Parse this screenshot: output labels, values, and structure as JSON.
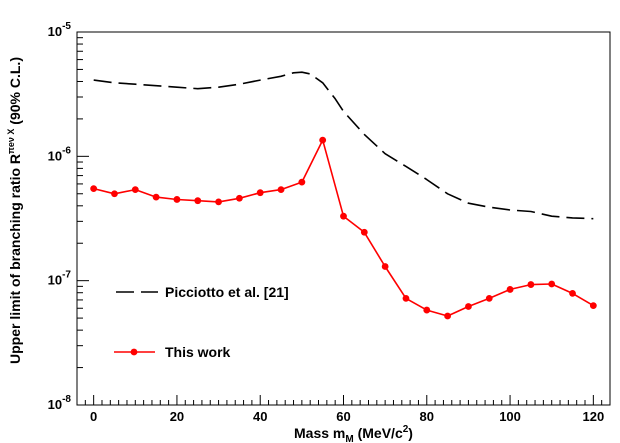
{
  "chart_data": {
    "type": "line",
    "title": "",
    "xlabel": "Mass m_M (MeV/c^2)",
    "xlabel_parts": {
      "main": "Mass m",
      "sub": "M",
      "mid": " (MeV/c",
      "sup": "2",
      "end": ")"
    },
    "ylabel": "Upper limit of branching ratio R^{πeνX} (90% C.L.)",
    "ylabel_parts": {
      "main": "Upper limit of branching ratio R",
      "sup": "πeν X",
      "end": " (90% C.L.)"
    },
    "xlim": [
      -4,
      124
    ],
    "ylim": [
      1e-08,
      1e-05
    ],
    "yscale": "log",
    "x_ticks": [
      "0",
      "20",
      "40",
      "60",
      "80",
      "100",
      "120"
    ],
    "y_ticks": [
      {
        "value": 1e-08,
        "base": "10",
        "exp": "-8"
      },
      {
        "value": 1e-07,
        "base": "10",
        "exp": "-7"
      },
      {
        "value": 1e-06,
        "base": "10",
        "exp": "-6"
      },
      {
        "value": 1e-05,
        "base": "10",
        "exp": "-5"
      }
    ],
    "legend_position": "lower-left",
    "series": [
      {
        "name": "Picciotto et al. [21]",
        "style": "dashed",
        "color": "#000000",
        "x": [
          0,
          5,
          10,
          15,
          20,
          25,
          30,
          35,
          40,
          45,
          48,
          50,
          52,
          55,
          58,
          60,
          65,
          70,
          75,
          80,
          85,
          90,
          95,
          100,
          105,
          110,
          115,
          120
        ],
        "y": [
          4.1e-06,
          3.9e-06,
          3.8e-06,
          3.7e-06,
          3.6e-06,
          3.5e-06,
          3.6e-06,
          3.8e-06,
          4.1e-06,
          4.4e-06,
          4.7e-06,
          4.75e-06,
          4.6e-06,
          3.9e-06,
          2.9e-06,
          2.3e-06,
          1.5e-06,
          1.05e-06,
          8.3e-07,
          6.5e-07,
          5e-07,
          4.2e-07,
          3.9e-07,
          3.7e-07,
          3.6e-07,
          3.3e-07,
          3.2e-07,
          3.15e-07
        ]
      },
      {
        "name": "This work",
        "style": "solid-markers",
        "color": "#ff0000",
        "x": [
          0,
          5,
          10,
          15,
          20,
          25,
          30,
          35,
          40,
          45,
          50,
          55,
          60,
          65,
          70,
          75,
          80,
          85,
          90,
          95,
          100,
          105,
          110,
          115,
          120
        ],
        "y": [
          5.5e-07,
          5e-07,
          5.4e-07,
          4.7e-07,
          4.5e-07,
          4.4e-07,
          4.3e-07,
          4.6e-07,
          5.1e-07,
          5.4e-07,
          6.2e-07,
          1.35e-06,
          3.3e-07,
          2.45e-07,
          1.3e-07,
          7.2e-08,
          5.8e-08,
          5.2e-08,
          6.2e-08,
          7.2e-08,
          8.5e-08,
          9.3e-08,
          9.4e-08,
          7.9e-08,
          6.3e-08
        ]
      }
    ]
  }
}
